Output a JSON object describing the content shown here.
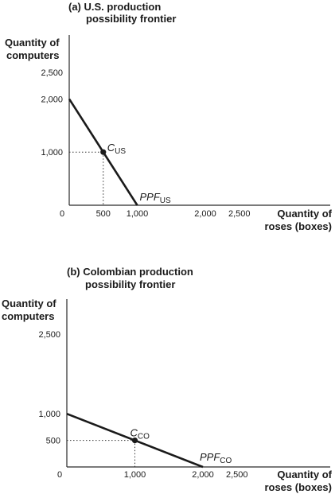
{
  "chart_data": [
    {
      "type": "line",
      "title_line1": "(a) U.S. production",
      "title_line2": "possibility frontier",
      "ylabel_line1": "Quantity of",
      "ylabel_line2": "computers",
      "xlabel_line1": "Quantity of",
      "xlabel_line2": "roses (boxes)",
      "origin_label": "0",
      "x_ticks": [
        {
          "value": 500,
          "label": "500"
        },
        {
          "value": 1000,
          "label": "1,000"
        },
        {
          "value": 2000,
          "label": "2,000"
        },
        {
          "value": 2500,
          "label": "2,500"
        }
      ],
      "y_ticks": [
        {
          "value": 1000,
          "label": "1,000"
        },
        {
          "value": 2000,
          "label": "2,000"
        },
        {
          "value": 2500,
          "label": "2,500"
        }
      ],
      "xlim": [
        0,
        3000
      ],
      "ylim": [
        0,
        3000
      ],
      "series": [
        {
          "name_main": "PPF",
          "name_sub": "US",
          "x": [
            0,
            1000
          ],
          "y": [
            2000,
            0
          ]
        }
      ],
      "point": {
        "label_main": "C",
        "label_sub": "US",
        "x": 500,
        "y": 1000
      }
    },
    {
      "type": "line",
      "title_line1": "(b) Colombian production",
      "title_line2": "possibility frontier",
      "ylabel_line1": "Quantity of",
      "ylabel_line2": "computers",
      "xlabel_line1": "Quantity of",
      "xlabel_line2": "roses (boxes)",
      "origin_label": "0",
      "x_ticks": [
        {
          "value": 1000,
          "label": "1,000"
        },
        {
          "value": 2000,
          "label": "2,000"
        },
        {
          "value": 2500,
          "label": "2,500"
        }
      ],
      "y_ticks": [
        {
          "value": 500,
          "label": "500"
        },
        {
          "value": 1000,
          "label": "1,000"
        },
        {
          "value": 2500,
          "label": "2,500"
        }
      ],
      "xlim": [
        0,
        3000
      ],
      "ylim": [
        0,
        3000
      ],
      "series": [
        {
          "name_main": "PPF",
          "name_sub": "CO",
          "x": [
            0,
            2000
          ],
          "y": [
            1000,
            0
          ]
        }
      ],
      "point": {
        "label_main": "C",
        "label_sub": "CO",
        "x": 1000,
        "y": 500
      }
    }
  ]
}
